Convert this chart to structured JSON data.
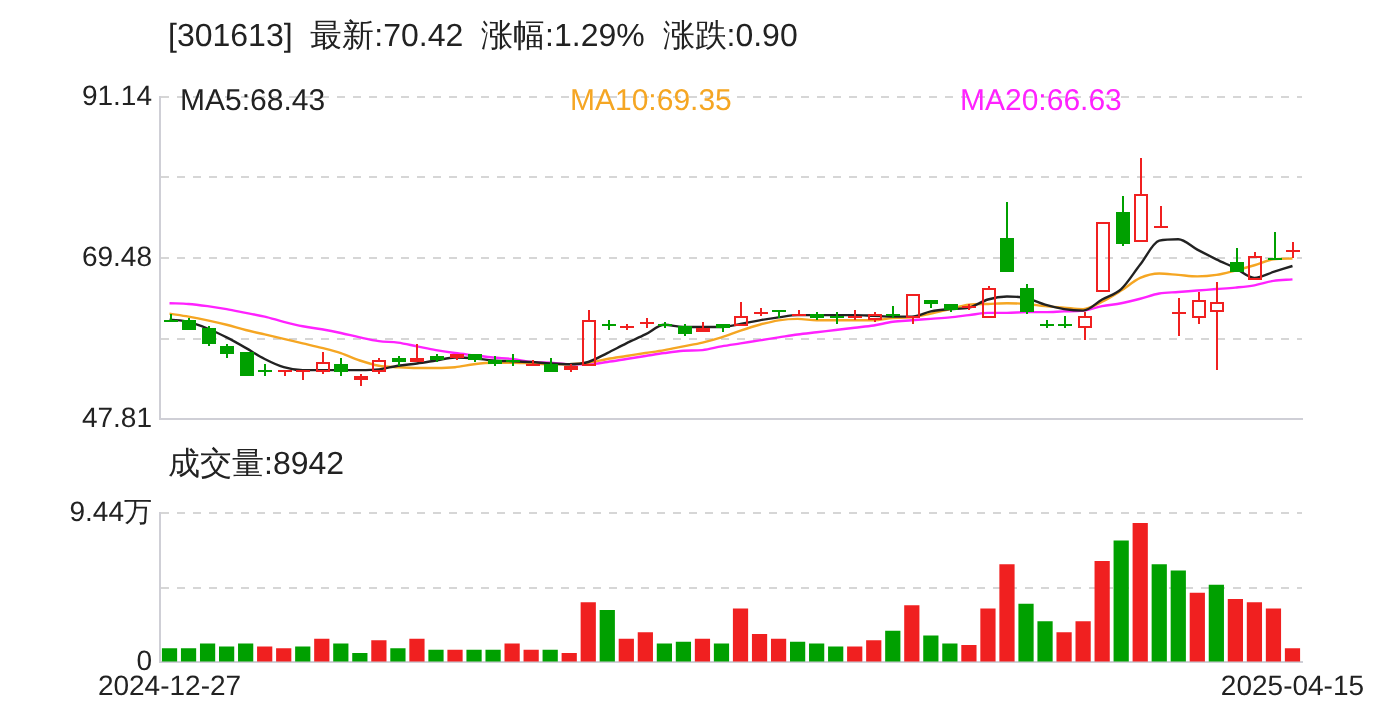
{
  "chart_data": [
    {
      "type": "candlestick",
      "title": "[301613]  最新:70.42  涨幅:1.29%  涨跌:0.90",
      "categories": [
        "2024-12-27",
        null,
        null,
        null,
        null,
        null,
        null,
        null,
        null,
        null,
        null,
        null,
        null,
        null,
        null,
        null,
        null,
        null,
        null,
        null,
        null,
        null,
        null,
        null,
        null,
        null,
        null,
        null,
        null,
        null,
        null,
        null,
        null,
        null,
        null,
        null,
        null,
        null,
        null,
        null,
        null,
        null,
        null,
        null,
        null,
        null,
        null,
        null,
        null,
        null,
        null,
        null,
        null,
        null,
        null,
        null,
        null,
        null,
        null,
        "2025-04-15"
      ],
      "ohlc": [
        [
          61.2,
          61.92,
          60.83,
          61.1
        ],
        [
          61.17,
          61.3,
          59.8,
          59.91
        ],
        [
          60.08,
          60.25,
          57.72,
          57.81
        ],
        [
          57.72,
          57.9,
          56.05,
          56.55
        ],
        [
          56.72,
          56.9,
          53.5,
          53.69
        ],
        [
          54.5,
          55.3,
          53.7,
          54.4
        ],
        [
          54.35,
          54.45,
          53.55,
          54.4
        ],
        [
          54.4,
          54.5,
          53.1,
          54.45
        ],
        [
          54.11,
          56.88,
          54.0,
          55.62
        ],
        [
          55.2,
          56.05,
          53.7,
          54.11
        ],
        [
          53.1,
          53.8,
          52.35,
          53.61
        ],
        [
          54.11,
          56.0,
          54.0,
          55.8
        ],
        [
          56.05,
          56.3,
          55.04,
          55.37
        ],
        [
          55.62,
          57.81,
          55.37,
          56.13
        ],
        [
          56.3,
          56.7,
          55.6,
          55.8
        ],
        [
          56.05,
          56.7,
          55.9,
          56.55
        ],
        [
          56.47,
          56.6,
          55.6,
          55.8
        ],
        [
          55.8,
          56.4,
          54.95,
          55.2
        ],
        [
          55.65,
          56.55,
          55.04,
          55.6
        ],
        [
          55.2,
          55.7,
          54.95,
          55.3
        ],
        [
          55.2,
          56.05,
          54.2,
          54.28
        ],
        [
          54.45,
          55.2,
          54.2,
          54.9
        ],
        [
          55.04,
          62.5,
          54.87,
          61.17
        ],
        [
          60.5,
          61.1,
          59.75,
          60.4
        ],
        [
          60.08,
          60.65,
          59.9,
          60.4
        ],
        [
          60.7,
          61.4,
          59.99,
          60.8
        ],
        [
          60.6,
          60.98,
          60.2,
          60.55
        ],
        [
          60.33,
          60.5,
          59.07,
          59.15
        ],
        [
          59.4,
          60.75,
          59.4,
          60.16
        ],
        [
          60.66,
          60.7,
          59.57,
          60.08
        ],
        [
          60.33,
          63.43,
          60.3,
          61.67
        ],
        [
          62.05,
          62.85,
          61.67,
          62.1
        ],
        [
          62.4,
          62.4,
          61.34,
          62.35
        ],
        [
          62.0,
          62.45,
          61.6,
          62.05
        ],
        [
          61.92,
          62.35,
          61.08,
          61.42
        ],
        [
          61.6,
          62.1,
          60.66,
          61.55
        ],
        [
          61.55,
          62.45,
          61.08,
          61.6
        ],
        [
          61.17,
          62.2,
          61.0,
          62.0
        ],
        [
          61.92,
          63.0,
          61.4,
          61.6
        ],
        [
          61.5,
          64.6,
          60.5,
          64.53
        ],
        [
          63.7,
          63.75,
          62.85,
          63.27
        ],
        [
          63.18,
          63.35,
          62.35,
          62.51
        ],
        [
          62.77,
          63.27,
          62.6,
          63.1
        ],
        [
          61.5,
          65.79,
          61.4,
          65.45
        ],
        [
          72.25,
          77.04,
          67.47,
          67.63
        ],
        [
          65.45,
          65.95,
          62.0,
          62.18
        ],
        [
          60.55,
          61.1,
          60.08,
          60.5
        ],
        [
          60.55,
          61.75,
          60.08,
          60.5
        ],
        [
          60.08,
          62.18,
          58.4,
          61.59
        ],
        [
          64.95,
          74.4,
          64.8,
          74.27
        ],
        [
          75.78,
          77.71,
          71.0,
          71.41
        ],
        [
          71.75,
          82.92,
          71.6,
          78.04
        ],
        [
          73.8,
          76.5,
          73.7,
          73.85
        ],
        [
          62.1,
          64.11,
          59.07,
          62.2
        ],
        [
          61.43,
          64.8,
          60.6,
          63.87
        ],
        [
          62.19,
          66.3,
          54.3,
          63.45
        ],
        [
          68.81,
          70.82,
          67.5,
          67.63
        ],
        [
          66.54,
          70.32,
          66.4,
          69.73
        ],
        [
          69.6,
          72.84,
          69.5,
          69.52
        ],
        [
          70.3,
          71.75,
          69.56,
          70.42
        ]
      ],
      "colors": [
        "#00a000",
        "#00a000",
        "#00a000",
        "#00a000",
        "#00a000",
        "#00a000",
        "#f02020",
        "#f02020",
        "#f02020",
        "#00a000",
        "#f02020",
        "#f02020",
        "#00a000",
        "#f02020",
        "#00a000",
        "#f02020",
        "#00a000",
        "#00a000",
        "#00a000",
        "#f02020",
        "#00a000",
        "#f02020",
        "#f02020",
        "#00a000",
        "#f02020",
        "#f02020",
        "#00a000",
        "#00a000",
        "#f02020",
        "#00a000",
        "#f02020",
        "#f02020",
        "#00a000",
        "#f02020",
        "#00a000",
        "#00a000",
        "#f02020",
        "#f02020",
        "#00a000",
        "#f02020",
        "#00a000",
        "#00a000",
        "#f02020",
        "#f02020",
        "#00a000",
        "#00a000",
        "#00a000",
        "#00a000",
        "#f02020",
        "#f02020",
        "#00a000",
        "#f02020",
        "#f02020",
        "#f02020",
        "#f02020",
        "#f02020",
        "#00a000",
        "#f02020",
        "#00a000",
        "#f02020"
      ],
      "series": [
        {
          "name": "MA5:68.43",
          "type": "line",
          "color": "#222222",
          "values": [
            61.2,
            60.9,
            60.0,
            58.8,
            57.4,
            55.9,
            54.8,
            54.4,
            54.4,
            54.4,
            54.4,
            54.5,
            55.0,
            55.3,
            55.7,
            56.1,
            56.0,
            55.7,
            55.6,
            55.5,
            55.3,
            55.2,
            55.5,
            56.7,
            58.0,
            59.2,
            60.5,
            60.2,
            60.2,
            60.2,
            60.6,
            61.1,
            61.5,
            61.8,
            61.8,
            61.8,
            61.8,
            61.7,
            61.6,
            61.6,
            62.3,
            62.6,
            62.8,
            63.9,
            64.3,
            64.1,
            63.2,
            62.6,
            62.4,
            63.9,
            65.3,
            68.6,
            71.8,
            72.0,
            70.6,
            69.3,
            68.1,
            66.8,
            67.6,
            68.4
          ]
        },
        {
          "name": "MA10:69.35",
          "type": "line",
          "color": "#f5a623",
          "values": [
            62.0,
            61.6,
            61.1,
            60.5,
            59.8,
            59.2,
            58.6,
            58.0,
            57.4,
            56.7,
            55.7,
            55.0,
            54.8,
            54.7,
            54.7,
            54.8,
            55.2,
            55.4,
            55.4,
            55.3,
            55.2,
            55.2,
            55.4,
            55.9,
            56.3,
            56.7,
            57.1,
            57.6,
            58.1,
            58.8,
            59.7,
            60.5,
            61.1,
            61.3,
            61.1,
            61.1,
            61.1,
            61.1,
            61.4,
            61.5,
            62.0,
            62.6,
            63.2,
            63.3,
            63.4,
            63.3,
            63.0,
            62.8,
            62.6,
            63.6,
            65.1,
            66.8,
            67.4,
            67.2,
            67.0,
            67.2,
            67.8,
            68.5,
            69.3,
            69.4
          ]
        },
        {
          "name": "MA20:66.63",
          "type": "line",
          "color": "#ff22ff",
          "values": [
            63.4,
            63.3,
            63.0,
            62.6,
            62.1,
            61.6,
            60.9,
            60.3,
            59.9,
            59.4,
            58.8,
            58.3,
            58.1,
            57.6,
            57.1,
            56.7,
            56.4,
            56.1,
            55.9,
            55.5,
            55.4,
            55.2,
            55.2,
            55.5,
            55.9,
            56.3,
            56.7,
            57.0,
            57.1,
            57.6,
            58.0,
            58.4,
            58.8,
            59.2,
            59.5,
            59.8,
            60.1,
            60.4,
            60.9,
            61.1,
            61.3,
            61.5,
            61.8,
            62.1,
            62.1,
            62.2,
            62.2,
            62.3,
            62.4,
            63.0,
            63.4,
            64.0,
            64.7,
            64.9,
            65.1,
            65.3,
            65.5,
            65.8,
            66.4,
            66.6
          ]
        }
      ],
      "ylim": [
        47.81,
        91.14
      ],
      "yticks": [
        47.81,
        {
          "value": 58.645,
          "label": null
        },
        69.48,
        {
          "value": 80.31,
          "label": null
        },
        91.14
      ],
      "grid": "y",
      "legend": "top",
      "marker": "none",
      "tick_labels": "y"
    },
    {
      "type": "bar",
      "title": "成交量:8942",
      "categories": [
        "2024-12-27",
        null,
        null,
        null,
        null,
        null,
        null,
        null,
        null,
        null,
        null,
        null,
        null,
        null,
        null,
        null,
        null,
        null,
        null,
        null,
        null,
        null,
        null,
        null,
        null,
        null,
        null,
        null,
        null,
        null,
        null,
        null,
        null,
        null,
        null,
        null,
        null,
        null,
        null,
        null,
        null,
        null,
        null,
        null,
        null,
        null,
        null,
        null,
        null,
        null,
        null,
        null,
        null,
        null,
        null,
        null,
        null,
        null,
        null,
        "2025-04-15"
      ],
      "values": [
        0.9,
        0.9,
        1.2,
        1.0,
        1.2,
        1.0,
        0.9,
        1.0,
        1.5,
        1.2,
        0.6,
        1.4,
        0.9,
        1.5,
        0.8,
        0.8,
        0.8,
        0.8,
        1.2,
        0.8,
        0.8,
        0.6,
        3.8,
        3.3,
        1.5,
        1.9,
        1.2,
        1.3,
        1.5,
        1.2,
        3.4,
        1.8,
        1.5,
        1.3,
        1.2,
        1.0,
        1.0,
        1.4,
        2.0,
        3.6,
        1.7,
        1.2,
        1.1,
        3.4,
        6.2,
        3.7,
        2.6,
        1.9,
        2.6,
        6.4,
        7.7,
        8.8,
        6.2,
        5.8,
        4.4,
        4.9,
        4.0,
        3.8,
        3.4,
        0.9
      ],
      "colors": [
        "#00a000",
        "#00a000",
        "#00a000",
        "#00a000",
        "#00a000",
        "#f02020",
        "#f02020",
        "#00a000",
        "#f02020",
        "#00a000",
        "#00a000",
        "#f02020",
        "#00a000",
        "#f02020",
        "#00a000",
        "#f02020",
        "#00a000",
        "#00a000",
        "#f02020",
        "#f02020",
        "#00a000",
        "#f02020",
        "#f02020",
        "#00a000",
        "#f02020",
        "#f02020",
        "#00a000",
        "#00a000",
        "#f02020",
        "#00a000",
        "#f02020",
        "#f02020",
        "#f02020",
        "#00a000",
        "#00a000",
        "#00a000",
        "#f02020",
        "#f02020",
        "#00a000",
        "#f02020",
        "#00a000",
        "#00a000",
        "#f02020",
        "#f02020",
        "#f02020",
        "#00a000",
        "#00a000",
        "#f02020",
        "#f02020",
        "#f02020",
        "#00a000",
        "#f02020",
        "#00a000",
        "#00a000",
        "#f02020",
        "#00a000",
        "#f02020",
        "#f02020",
        "#f02020",
        "#f02020"
      ],
      "ylim": [
        0,
        9.44
      ],
      "yticks": [
        0,
        {
          "value": 4.72,
          "label": null
        },
        {
          "value": 9.44,
          "label": "9.44万"
        }
      ],
      "grid": "y"
    }
  ]
}
